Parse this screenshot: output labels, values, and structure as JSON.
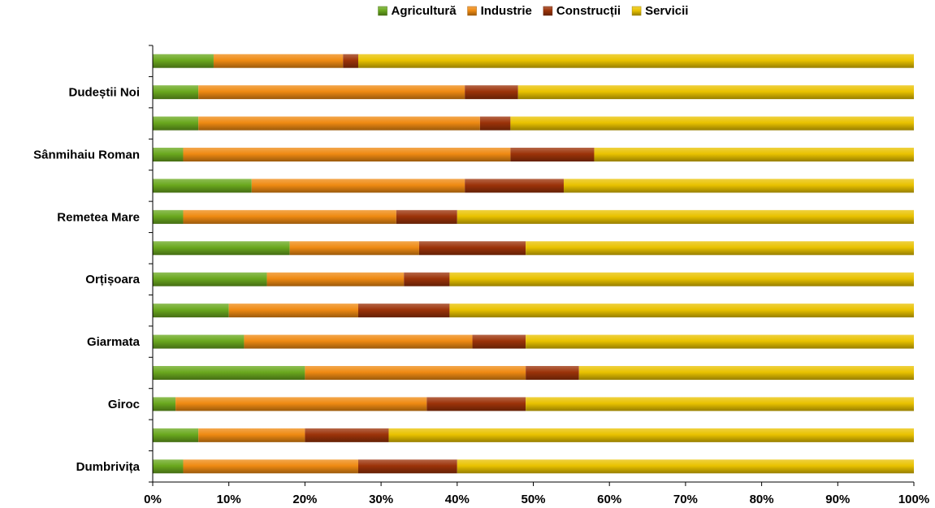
{
  "chart_data": {
    "type": "bar",
    "orientation": "horizontal",
    "stacked": "percent",
    "title": "",
    "xlabel": "",
    "ylabel": "",
    "xlim": [
      0,
      100
    ],
    "x_ticks": [
      "0%",
      "10%",
      "20%",
      "30%",
      "40%",
      "50%",
      "60%",
      "70%",
      "80%",
      "90%",
      "100%"
    ],
    "legend_position": "top",
    "grid": false,
    "categories": [
      "Dumbrivița",
      "",
      "Giroc",
      "",
      "Giarmata",
      "",
      "Orțișoara",
      "",
      "Remetea Mare",
      "",
      "Sânmihaiu Roman",
      "",
      "Dudeștii Noi",
      ""
    ],
    "series": [
      {
        "name": "Agricultură",
        "color": "#6aa81e",
        "values": [
          4,
          6,
          3,
          20,
          12,
          10,
          15,
          18,
          4,
          13,
          4,
          6,
          6,
          8
        ]
      },
      {
        "name": "Industrie",
        "color": "#ef8a12",
        "values": [
          23,
          14,
          33,
          29,
          30,
          17,
          18,
          17,
          28,
          28,
          43,
          37,
          35,
          17
        ]
      },
      {
        "name": "Construcții",
        "color": "#9c3309",
        "values": [
          13,
          11,
          13,
          7,
          7,
          12,
          6,
          14,
          8,
          13,
          11,
          4,
          7,
          2
        ]
      },
      {
        "name": "Servicii",
        "color": "#e9c200",
        "values": [
          60,
          69,
          51,
          44,
          51,
          61,
          61,
          51,
          60,
          46,
          42,
          53,
          52,
          73
        ]
      }
    ]
  }
}
